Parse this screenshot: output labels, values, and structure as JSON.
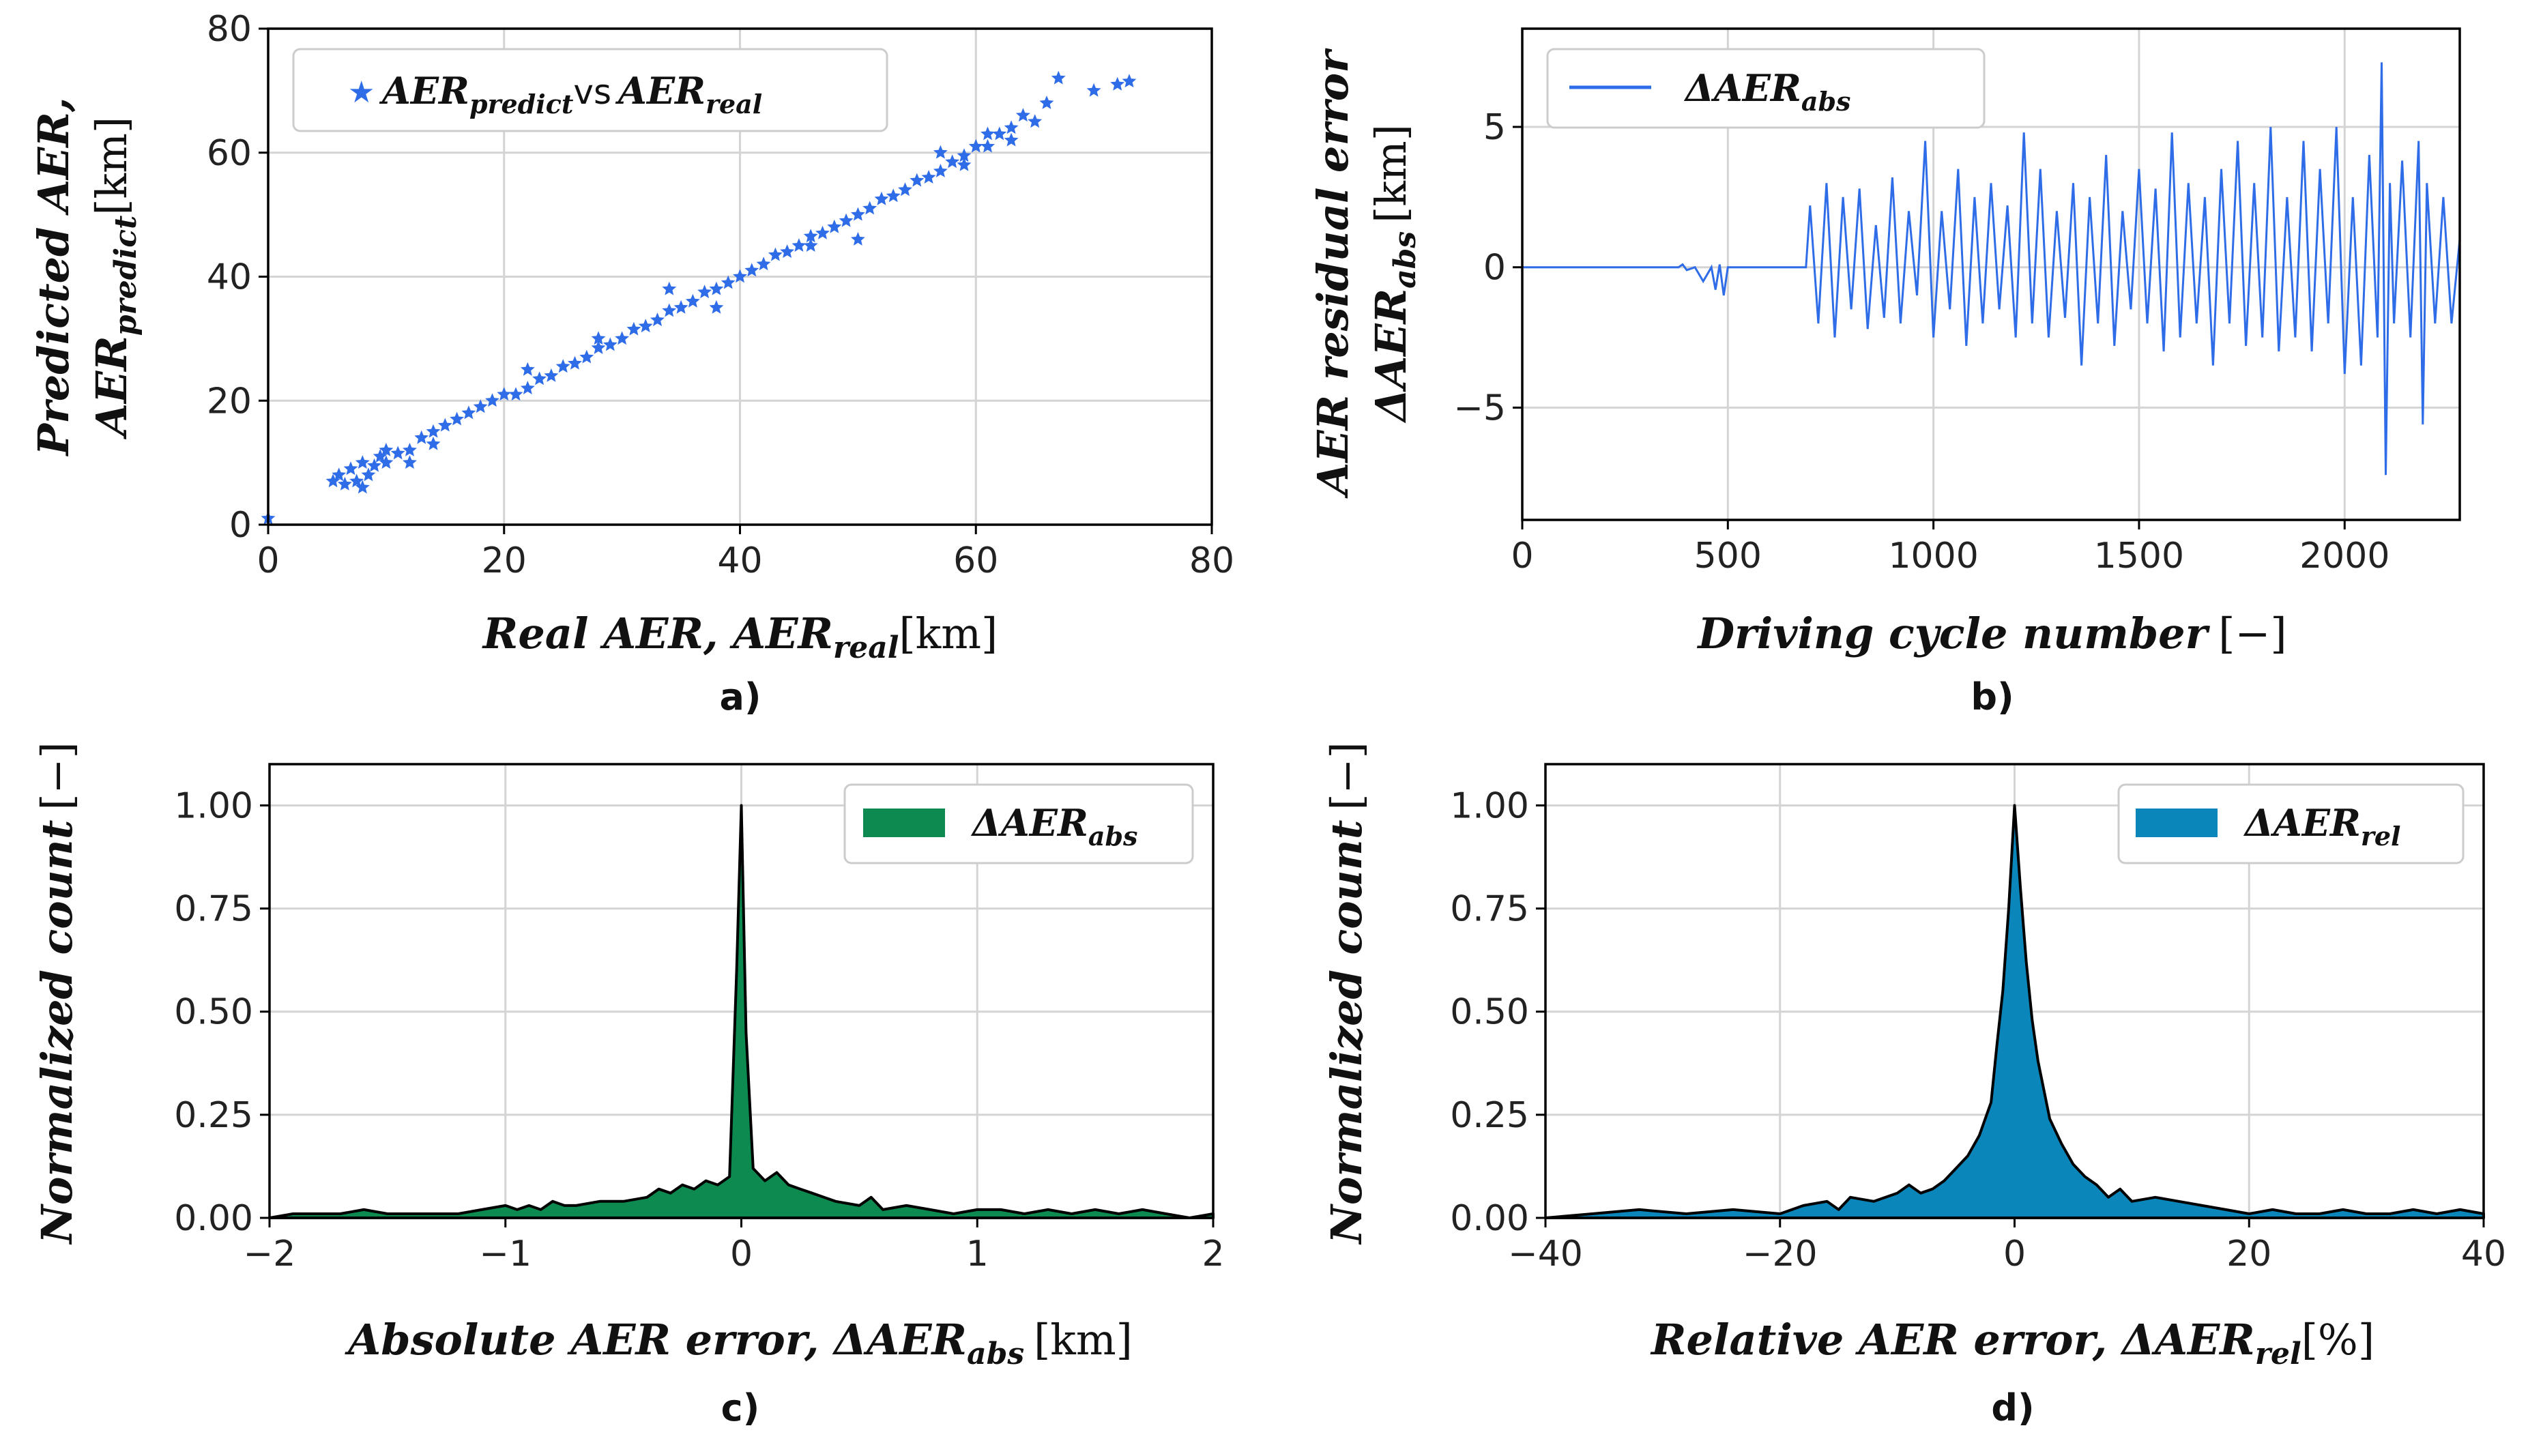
{
  "panels": {
    "a": {
      "label": "a)",
      "xlabel_main": "Real AER,  AER",
      "xlabel_sub": "real",
      "xlabel_unit": "[km]",
      "ylabel_line1": "Predicted AER,",
      "ylabel_line2_main": "AER",
      "ylabel_line2_sub": "predict",
      "ylabel_line2_unit": "[km]",
      "legend_main1": "AER",
      "legend_sub1": "predict",
      "legend_vs": "vs",
      "legend_main2": "AER",
      "legend_sub2": "real"
    },
    "b": {
      "label": "b)",
      "xlabel_main": "Driving cycle number",
      "xlabel_unit": "[−]",
      "ylabel_line1": "AER residual error",
      "ylabel_line2_main": "ΔAER",
      "ylabel_line2_sub": "abs",
      "ylabel_line2_unit": "[km]",
      "legend_main": "ΔAER",
      "legend_sub": "abs"
    },
    "c": {
      "label": "c)",
      "xlabel_main": "Absolute AER error, ΔAER",
      "xlabel_sub": "abs",
      "xlabel_unit": "[km]",
      "ylabel_main": "Normalized count",
      "ylabel_unit": "[−]",
      "legend_main": "ΔAER",
      "legend_sub": "abs"
    },
    "d": {
      "label": "d)",
      "xlabel_main": "Relative AER error, ΔAER",
      "xlabel_sub": "rel",
      "xlabel_unit": "[%]",
      "ylabel_main": "Normalized count",
      "ylabel_unit": "[−]",
      "legend_main": "ΔAER",
      "legend_sub": "rel"
    }
  },
  "colors": {
    "scatter": "#2f6ce8",
    "line": "#2f6ce8",
    "hist_abs": "#0c8a50",
    "hist_rel": "#0b86bb"
  },
  "chart_data": [
    {
      "id": "a",
      "type": "scatter",
      "xlim": [
        0,
        80
      ],
      "ylim": [
        0,
        80
      ],
      "xticks": [
        0,
        20,
        40,
        60,
        80
      ],
      "yticks": [
        0,
        20,
        40,
        60,
        80
      ],
      "grid": true,
      "legend_position": "top-left",
      "marker": "star",
      "series": [
        {
          "name": "AERpredict vs AERreal",
          "points": [
            [
              0,
              1
            ],
            [
              5.5,
              7
            ],
            [
              6,
              8
            ],
            [
              6.5,
              6.5
            ],
            [
              7,
              9
            ],
            [
              7.5,
              7
            ],
            [
              8,
              10
            ],
            [
              8.5,
              8
            ],
            [
              9,
              9.5
            ],
            [
              9.5,
              11
            ],
            [
              10,
              10
            ],
            [
              11,
              11.5
            ],
            [
              12,
              12
            ],
            [
              13,
              14
            ],
            [
              14,
              15
            ],
            [
              15,
              16
            ],
            [
              16,
              17
            ],
            [
              17,
              18
            ],
            [
              18,
              19
            ],
            [
              19,
              20
            ],
            [
              20,
              21
            ],
            [
              21,
              21
            ],
            [
              22,
              22
            ],
            [
              23,
              23.5
            ],
            [
              24,
              24
            ],
            [
              25,
              25.5
            ],
            [
              26,
              26
            ],
            [
              27,
              27
            ],
            [
              28,
              28.5
            ],
            [
              29,
              29
            ],
            [
              30,
              30
            ],
            [
              31,
              31.5
            ],
            [
              32,
              32
            ],
            [
              33,
              33
            ],
            [
              34,
              34.5
            ],
            [
              35,
              35
            ],
            [
              36,
              36
            ],
            [
              37,
              37.5
            ],
            [
              38,
              38
            ],
            [
              39,
              39
            ],
            [
              40,
              40
            ],
            [
              41,
              41
            ],
            [
              42,
              42
            ],
            [
              43,
              43.5
            ],
            [
              44,
              44
            ],
            [
              45,
              45
            ],
            [
              46,
              46.5
            ],
            [
              47,
              47
            ],
            [
              48,
              48
            ],
            [
              49,
              49
            ],
            [
              50,
              50
            ],
            [
              51,
              51
            ],
            [
              52,
              52.5
            ],
            [
              53,
              53
            ],
            [
              54,
              54
            ],
            [
              55,
              55.5
            ],
            [
              56,
              56
            ],
            [
              57,
              57
            ],
            [
              58,
              58.5
            ],
            [
              59,
              59.5
            ],
            [
              60,
              61
            ],
            [
              61,
              61
            ],
            [
              62,
              63
            ],
            [
              63,
              64
            ],
            [
              64,
              66
            ],
            [
              65,
              65
            ],
            [
              66,
              68
            ],
            [
              67,
              72
            ],
            [
              70,
              70
            ],
            [
              72,
              71
            ],
            [
              73,
              71.5
            ],
            [
              57,
              60
            ],
            [
              59,
              58
            ],
            [
              61,
              63
            ],
            [
              63,
              62
            ],
            [
              34,
              38
            ],
            [
              38,
              35
            ],
            [
              46,
              45
            ],
            [
              50,
              46
            ],
            [
              28,
              30
            ],
            [
              22,
              25
            ],
            [
              14,
              13
            ],
            [
              10,
              12
            ],
            [
              8,
              6
            ],
            [
              12,
              10
            ]
          ]
        }
      ]
    },
    {
      "id": "b",
      "type": "line",
      "xlim": [
        0,
        2280
      ],
      "ylim": [
        -9,
        8.5
      ],
      "xticks": [
        0,
        500,
        1000,
        1500,
        2000
      ],
      "yticks": [
        -5,
        0,
        5
      ],
      "grid": true,
      "legend_position": "top-left",
      "series": [
        {
          "name": "ΔAERabs",
          "x": [
            0,
            380,
            390,
            400,
            420,
            440,
            460,
            470,
            480,
            490,
            500,
            510,
            650,
            690,
            700,
            720,
            740,
            760,
            780,
            800,
            820,
            840,
            860,
            880,
            900,
            920,
            940,
            960,
            980,
            1000,
            1020,
            1040,
            1060,
            1080,
            1100,
            1120,
            1140,
            1160,
            1180,
            1200,
            1220,
            1240,
            1260,
            1280,
            1300,
            1320,
            1340,
            1360,
            1380,
            1400,
            1420,
            1440,
            1460,
            1480,
            1500,
            1520,
            1540,
            1560,
            1580,
            1600,
            1620,
            1640,
            1660,
            1680,
            1700,
            1720,
            1740,
            1760,
            1780,
            1800,
            1820,
            1840,
            1860,
            1880,
            1900,
            1920,
            1940,
            1960,
            1980,
            2000,
            2020,
            2040,
            2060,
            2080,
            2090,
            2100,
            2110,
            2120,
            2140,
            2160,
            2180,
            2190,
            2200,
            2220,
            2240,
            2260,
            2280
          ],
          "y": [
            0,
            0,
            0.1,
            -0.1,
            0,
            -0.5,
            0,
            -0.8,
            0.1,
            -1.0,
            0,
            0,
            0,
            0,
            2.2,
            -2.0,
            3.0,
            -2.5,
            2.5,
            -1.5,
            2.8,
            -2.2,
            1.5,
            -1.8,
            3.2,
            -2.0,
            2.0,
            -1.0,
            4.5,
            -2.5,
            2.0,
            -1.5,
            3.5,
            -2.8,
            2.5,
            -2.0,
            3.0,
            -1.5,
            2.2,
            -2.5,
            4.8,
            -2.0,
            3.5,
            -2.5,
            2.0,
            -1.8,
            3.0,
            -3.5,
            2.5,
            -2.0,
            4.0,
            -2.8,
            2.0,
            -1.5,
            3.5,
            -2.0,
            2.8,
            -3.0,
            4.8,
            -2.5,
            3.0,
            -2.0,
            2.5,
            -3.5,
            3.5,
            -2.0,
            4.5,
            -2.8,
            3.0,
            -2.5,
            5.0,
            -3.0,
            2.5,
            -2.5,
            4.5,
            -3.0,
            3.5,
            -2.0,
            5.0,
            -3.8,
            2.5,
            -3.5,
            4.0,
            -2.5,
            7.3,
            -7.4,
            3.0,
            -2.0,
            3.8,
            -2.5,
            4.5,
            -5.6,
            3.0,
            -2.0,
            2.5,
            -2.0,
            1.0
          ]
        }
      ]
    },
    {
      "id": "c",
      "type": "area",
      "xlim": [
        -2,
        2
      ],
      "ylim": [
        0,
        1.1
      ],
      "xticks": [
        -2,
        -1,
        0,
        1,
        2
      ],
      "yticks": [
        0,
        0.25,
        0.5,
        0.75,
        1.0
      ],
      "ytick_labels": [
        "0.00",
        "0.25",
        "0.50",
        "0.75",
        "1.00"
      ],
      "xtick_labels": [
        "−2",
        "−1",
        "0",
        "1",
        "2"
      ],
      "grid": true,
      "legend_position": "top-right",
      "series": [
        {
          "name": "ΔAERabs",
          "x": [
            -2.0,
            -1.9,
            -1.8,
            -1.7,
            -1.6,
            -1.5,
            -1.4,
            -1.3,
            -1.2,
            -1.1,
            -1.0,
            -0.95,
            -0.9,
            -0.85,
            -0.8,
            -0.75,
            -0.7,
            -0.6,
            -0.5,
            -0.4,
            -0.35,
            -0.3,
            -0.25,
            -0.2,
            -0.15,
            -0.1,
            -0.05,
            -0.02,
            0.0,
            0.02,
            0.05,
            0.1,
            0.15,
            0.2,
            0.25,
            0.3,
            0.35,
            0.4,
            0.5,
            0.55,
            0.6,
            0.7,
            0.8,
            0.9,
            1.0,
            1.1,
            1.2,
            1.3,
            1.4,
            1.5,
            1.6,
            1.7,
            1.8,
            1.9,
            2.0
          ],
          "y": [
            0.0,
            0.01,
            0.01,
            0.01,
            0.02,
            0.01,
            0.01,
            0.01,
            0.01,
            0.02,
            0.03,
            0.02,
            0.03,
            0.02,
            0.04,
            0.03,
            0.03,
            0.04,
            0.04,
            0.05,
            0.07,
            0.06,
            0.08,
            0.07,
            0.09,
            0.08,
            0.1,
            0.6,
            1.0,
            0.45,
            0.12,
            0.09,
            0.11,
            0.08,
            0.07,
            0.06,
            0.05,
            0.04,
            0.03,
            0.05,
            0.02,
            0.03,
            0.02,
            0.01,
            0.02,
            0.02,
            0.01,
            0.02,
            0.01,
            0.02,
            0.01,
            0.02,
            0.01,
            0.0,
            0.01
          ]
        }
      ]
    },
    {
      "id": "d",
      "type": "area",
      "xlim": [
        -40,
        40
      ],
      "ylim": [
        0,
        1.1
      ],
      "xticks": [
        -40,
        -20,
        0,
        20,
        40
      ],
      "xtick_labels": [
        "−40",
        "−20",
        "0",
        "20",
        "40"
      ],
      "yticks": [
        0,
        0.25,
        0.5,
        0.75,
        1.0
      ],
      "ytick_labels": [
        "0.00",
        "0.25",
        "0.50",
        "0.75",
        "1.00"
      ],
      "grid": true,
      "legend_position": "top-right",
      "series": [
        {
          "name": "ΔAERrel",
          "x": [
            -40,
            -36,
            -32,
            -28,
            -24,
            -20,
            -18,
            -16,
            -15,
            -14,
            -12,
            -10,
            -9,
            -8,
            -7,
            -6,
            -5,
            -4,
            -3,
            -2,
            -1.5,
            -1,
            -0.5,
            0,
            0.5,
            1,
            1.5,
            2,
            3,
            4,
            5,
            6,
            7,
            8,
            9,
            10,
            12,
            14,
            16,
            18,
            20,
            22,
            24,
            26,
            28,
            30,
            32,
            34,
            36,
            38,
            40
          ],
          "y": [
            0.0,
            0.01,
            0.02,
            0.01,
            0.02,
            0.01,
            0.03,
            0.04,
            0.02,
            0.05,
            0.04,
            0.06,
            0.08,
            0.06,
            0.07,
            0.09,
            0.12,
            0.15,
            0.2,
            0.28,
            0.42,
            0.55,
            0.75,
            1.0,
            0.8,
            0.62,
            0.48,
            0.38,
            0.24,
            0.18,
            0.13,
            0.1,
            0.08,
            0.05,
            0.07,
            0.04,
            0.05,
            0.04,
            0.03,
            0.02,
            0.01,
            0.02,
            0.01,
            0.01,
            0.02,
            0.01,
            0.01,
            0.02,
            0.01,
            0.02,
            0.01
          ]
        }
      ]
    }
  ]
}
